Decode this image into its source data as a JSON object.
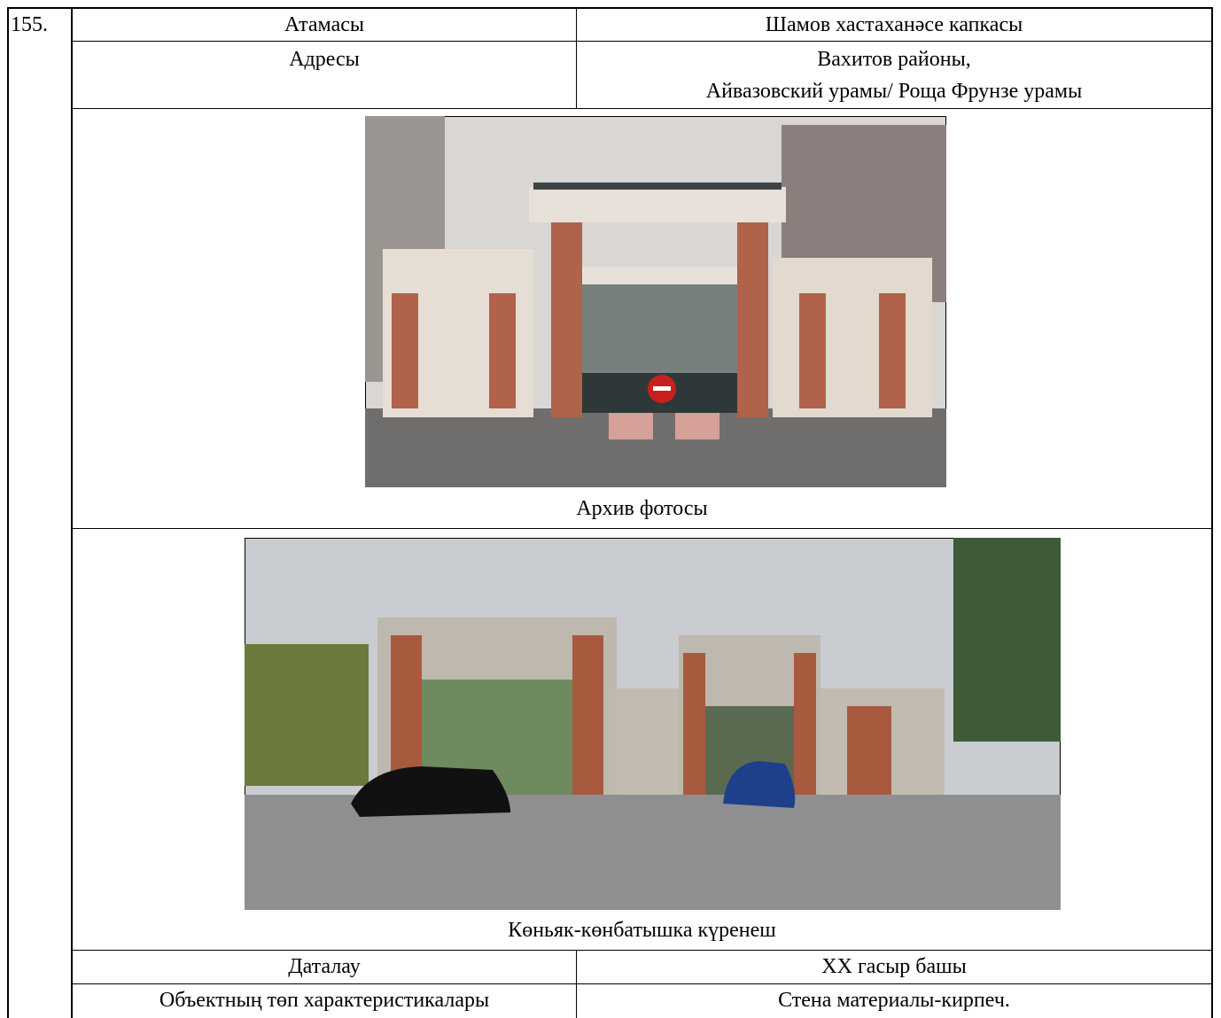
{
  "item_number": "155.",
  "rows_top": [
    {
      "label": "Атамасы",
      "value": [
        "Шамов хастаханәсе капкасы"
      ]
    },
    {
      "label": "Адресы",
      "value": [
        "Вахитов районы,",
        "Айвазовский урамы/ Роща Фрунзе урамы"
      ]
    }
  ],
  "photos": [
    {
      "caption": "Архив фотосы"
    },
    {
      "caption": "Көньяк-көнбатышка күренеш"
    }
  ],
  "rows_bottom": [
    {
      "label": "Даталау",
      "value": [
        "XX гасыр башы"
      ]
    },
    {
      "label": "Объектның төп характеристикалары",
      "value": [
        "Стена материалы-кирпеч."
      ]
    }
  ]
}
